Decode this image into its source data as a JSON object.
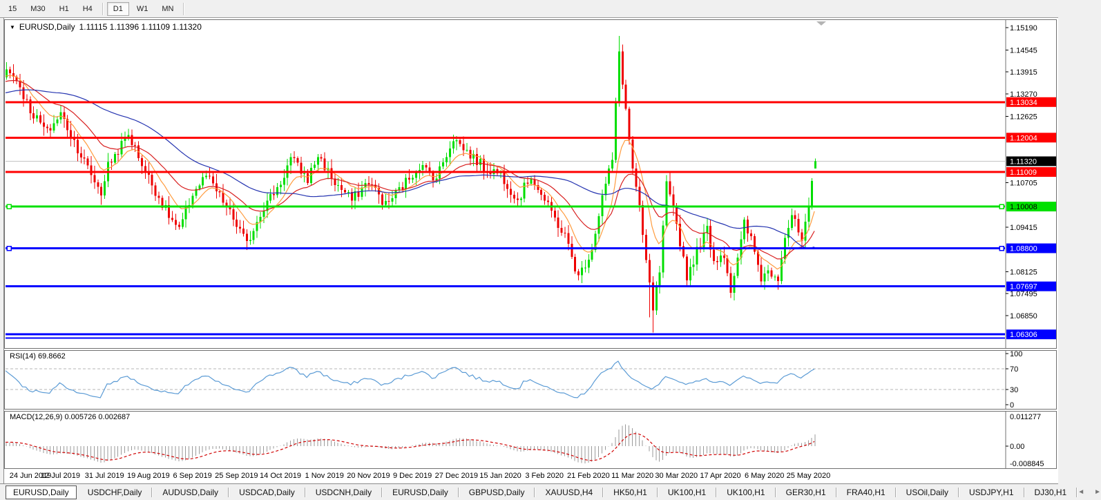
{
  "toolbar": {
    "timeframes": [
      {
        "label": "15",
        "active": false
      },
      {
        "label": "M30",
        "active": false
      },
      {
        "label": "H1",
        "active": false
      },
      {
        "label": "H4",
        "active": false
      },
      {
        "label": "D1",
        "active": true
      },
      {
        "label": "W1",
        "active": false
      },
      {
        "label": "MN",
        "active": false
      }
    ],
    "separator_after": [
      "H4",
      "MN"
    ]
  },
  "chart": {
    "title": "EURUSD,Daily",
    "ohlc": "1.11115 1.11396 1.11109 1.11320",
    "dropdown_icon": "▼"
  },
  "rsi_panel": {
    "label": "RSI(14) 69.8662"
  },
  "macd_panel": {
    "label": "MACD(12,26,9) 0.005726 0.002687"
  },
  "chart_data": {
    "type": "candlestick",
    "symbol": "EURUSD",
    "timeframe": "Daily",
    "bar_count": 240,
    "ylim": [
      1.0593,
      1.1539
    ],
    "current_bar": {
      "open": 1.11115,
      "high": 1.11396,
      "low": 1.11109,
      "close": 1.1132
    },
    "current_price": 1.1132,
    "forced": {
      "peak_index": 181,
      "peak_high": 1.1495,
      "trough_index": 191,
      "trough_low": 1.0636
    },
    "anchor_closes": [
      [
        0,
        1.1395
      ],
      [
        3,
        1.137
      ],
      [
        7,
        1.128
      ],
      [
        12,
        1.1215
      ],
      [
        16,
        1.127
      ],
      [
        22,
        1.115
      ],
      [
        26,
        1.1075
      ],
      [
        28,
        1.104
      ],
      [
        30,
        1.112
      ],
      [
        36,
        1.121
      ],
      [
        42,
        1.1085
      ],
      [
        47,
        1.099
      ],
      [
        51,
        1.093
      ],
      [
        55,
        1.104
      ],
      [
        59,
        1.109
      ],
      [
        64,
        1.1015
      ],
      [
        69,
        1.093
      ],
      [
        71,
        1.089
      ],
      [
        75,
        1.0985
      ],
      [
        81,
        1.107
      ],
      [
        84,
        1.114
      ],
      [
        89,
        1.108
      ],
      [
        92,
        1.115
      ],
      [
        97,
        1.107
      ],
      [
        102,
        1.102
      ],
      [
        107,
        1.1075
      ],
      [
        112,
        1.1005
      ],
      [
        117,
        1.106
      ],
      [
        122,
        1.112
      ],
      [
        127,
        1.1085
      ],
      [
        132,
        1.12
      ],
      [
        136,
        1.116
      ],
      [
        141,
        1.1115
      ],
      [
        146,
        1.1095
      ],
      [
        151,
        1.102
      ],
      [
        155,
        1.109
      ],
      [
        160,
        1.1
      ],
      [
        165,
        1.0915
      ],
      [
        169,
        1.0795
      ],
      [
        173,
        1.088
      ],
      [
        176,
        1.103
      ],
      [
        179,
        1.1135
      ],
      [
        181,
        1.145
      ],
      [
        183,
        1.128
      ],
      [
        185,
        1.111
      ],
      [
        187,
        1.099
      ],
      [
        189,
        1.084
      ],
      [
        191,
        1.07
      ],
      [
        193,
        1.081
      ],
      [
        195,
        1.106
      ],
      [
        198,
        1.095
      ],
      [
        201,
        1.08
      ],
      [
        204,
        1.087
      ],
      [
        207,
        1.0935
      ],
      [
        209,
        1.0845
      ],
      [
        212,
        1.0865
      ],
      [
        214,
        1.076
      ],
      [
        216,
        1.0845
      ],
      [
        218,
        1.095
      ],
      [
        220,
        1.0905
      ],
      [
        223,
        1.0795
      ],
      [
        225,
        1.0815
      ],
      [
        228,
        1.08
      ],
      [
        230,
        1.0915
      ],
      [
        232,
        1.0975
      ],
      [
        235,
        1.09
      ],
      [
        237,
        1.099
      ],
      [
        238,
        1.1075
      ],
      [
        239,
        1.1132
      ]
    ],
    "moving_averages": [
      {
        "name": "fast-ma",
        "type": "ema",
        "period": 10,
        "color": "#FF9B3D"
      },
      {
        "name": "mid-ma",
        "type": "ema",
        "period": 24,
        "color": "#D81F1F"
      },
      {
        "name": "slow-ma",
        "type": "sma",
        "period": 52,
        "color": "#2433B0"
      }
    ],
    "candle_up_color": "#00DE00",
    "candle_down_color": "#EE0000",
    "horizontal_lines": [
      {
        "price": 1.13034,
        "color": "#FF0000",
        "thickness": 3,
        "badge": true,
        "badge_fg": "#FFFFFF",
        "handles": false
      },
      {
        "price": 1.12004,
        "color": "#FF0000",
        "thickness": 3,
        "badge": true,
        "badge_fg": "#FFFFFF",
        "handles": false
      },
      {
        "price": 1.11009,
        "color": "#FF0000",
        "thickness": 3,
        "badge": true,
        "badge_fg": "#FFFFFF",
        "handles": false
      },
      {
        "price": 1.10008,
        "color": "#00E000",
        "thickness": 3,
        "badge": true,
        "badge_fg": "#000000",
        "handles": true
      },
      {
        "price": 1.088,
        "color": "#0000FF",
        "thickness": 3,
        "badge": true,
        "badge_fg": "#FFFFFF",
        "handles": true
      },
      {
        "price": 1.07697,
        "color": "#0000FF",
        "thickness": 3,
        "badge": true,
        "badge_fg": "#FFFFFF",
        "handles": false
      },
      {
        "price": 1.06306,
        "color": "#0000FF",
        "thickness": 3,
        "badge": true,
        "badge_fg": "#FFFFFF",
        "handles": false
      },
      {
        "price": 1.06205,
        "color": "#0000FF",
        "thickness": 2,
        "badge": false,
        "badge_fg": "#FFFFFF",
        "handles": false
      }
    ],
    "current_price_line": {
      "color": "#C4C4C4",
      "badge_bg": "#000000",
      "badge_fg": "#FFFFFF"
    },
    "y_ticks": [
      1.1519,
      1.14545,
      1.13915,
      1.1327,
      1.12625,
      1.10705,
      1.09415,
      1.08125,
      1.07495,
      1.0685
    ],
    "x_labels": [
      "24 Jun 2019",
      "12 Jul 2019",
      "31 Jul 2019",
      "19 Aug 2019",
      "6 Sep 2019",
      "25 Sep 2019",
      "14 Oct 2019",
      "1 Nov 2019",
      "20 Nov 2019",
      "9 Dec 2019",
      "27 Dec 2019",
      "15 Jan 2020",
      "3 Feb 2020",
      "21 Feb 2020",
      "11 Mar 2020",
      "30 Mar 2020",
      "17 Apr 2020",
      "6 May 2020",
      "25 May 2020"
    ],
    "indicators": {
      "rsi": {
        "period": 14,
        "value": 69.8662,
        "levels": [
          70,
          30
        ],
        "scale_labels": [
          "100",
          "70",
          "30",
          "0"
        ],
        "line_color": "#5B9BD5"
      },
      "macd": {
        "fast": 12,
        "slow": 26,
        "signal": 9,
        "macd_value": 0.005726,
        "signal_value": 0.002687,
        "scale_labels": [
          "0.011277",
          "0.00",
          "-0.008845"
        ],
        "histogram_color": "#9a9a9a",
        "signal_color": "#D00000"
      }
    },
    "chart_shift_marker": true
  },
  "tabs": {
    "items": [
      {
        "label": "EURUSD,Daily",
        "active": true
      },
      {
        "label": "USDCHF,Daily",
        "active": false
      },
      {
        "label": "AUDUSD,Daily",
        "active": false
      },
      {
        "label": "USDCAD,Daily",
        "active": false
      },
      {
        "label": "USDCNH,Daily",
        "active": false
      },
      {
        "label": "EURUSD,Daily",
        "active": false
      },
      {
        "label": "GBPUSD,Daily",
        "active": false
      },
      {
        "label": "XAUUSD,H4",
        "active": false
      },
      {
        "label": "HK50,H1",
        "active": false
      },
      {
        "label": "UK100,H1",
        "active": false
      },
      {
        "label": "UK100,H1",
        "active": false
      },
      {
        "label": "GER30,H1",
        "active": false
      },
      {
        "label": "FRA40,H1",
        "active": false
      },
      {
        "label": "USOil,Daily",
        "active": false
      },
      {
        "label": "USDJPY,H1",
        "active": false
      },
      {
        "label": "DJ30,H1",
        "active": false
      }
    ],
    "scroll_left": "◄",
    "scroll_right": "►"
  }
}
